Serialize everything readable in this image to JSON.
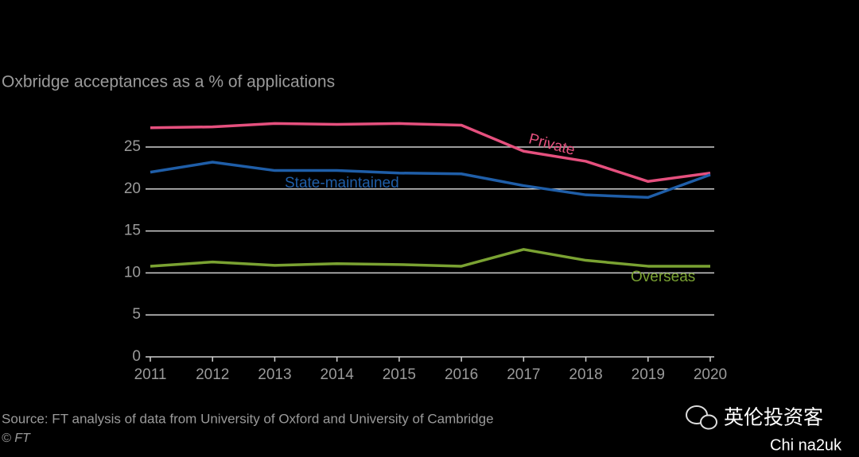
{
  "chart_data": {
    "type": "line",
    "subtitle": "Oxbridge acceptances as a % of applications",
    "x": [
      2011,
      2012,
      2013,
      2014,
      2015,
      2016,
      2017,
      2018,
      2019,
      2020
    ],
    "xlim": [
      2011,
      2020
    ],
    "xticks": [
      2011,
      2012,
      2013,
      2014,
      2015,
      2016,
      2017,
      2018,
      2019,
      2020
    ],
    "ylim": [
      0,
      28
    ],
    "yticks": [
      0,
      5,
      10,
      15,
      20,
      25
    ],
    "grid": true,
    "series": [
      {
        "name": "Private",
        "color": "#e5507e",
        "values": [
          27.3,
          27.4,
          27.8,
          27.7,
          27.8,
          27.6,
          24.5,
          23.3,
          20.9,
          21.9
        ]
      },
      {
        "name": "State-maintained",
        "color": "#1f5ea8",
        "values": [
          22.0,
          23.2,
          22.2,
          22.2,
          21.9,
          21.8,
          20.4,
          19.3,
          19.0,
          21.7
        ]
      },
      {
        "name": "Overseas",
        "color": "#7aa232",
        "values": [
          10.8,
          11.3,
          10.9,
          11.1,
          11.0,
          10.8,
          12.8,
          11.5,
          10.8,
          10.8
        ]
      }
    ],
    "source": "Source: FT analysis of data from University of Oxford and University of Cambridge",
    "credit": "© FT",
    "watermark": "英伦投资客",
    "watermark_sub": "Chi na2uk"
  }
}
